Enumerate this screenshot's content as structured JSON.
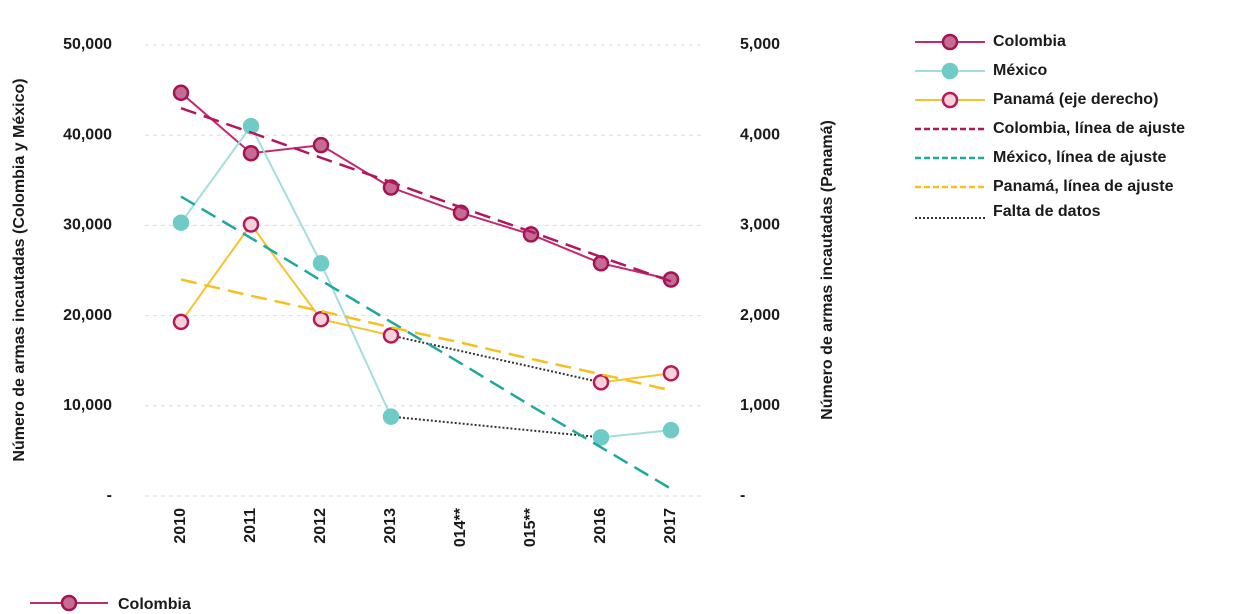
{
  "chart_data": {
    "type": "line",
    "categories": [
      "2010",
      "2011",
      "2012",
      "2013",
      "014**",
      "015**",
      "2016",
      "2017"
    ],
    "ylabel": "Número de armas incautadas (Colombia y México)",
    "y2label": "Número de armas incautadas (Panamá)",
    "ylim": [
      0,
      50000
    ],
    "yticks": [
      {
        "value": 0,
        "label": "-"
      },
      {
        "value": 10000,
        "label": "10,000"
      },
      {
        "value": 20000,
        "label": "20,000"
      },
      {
        "value": 30000,
        "label": "30,000"
      },
      {
        "value": 40000,
        "label": "40,000"
      },
      {
        "value": 50000,
        "label": "50,000"
      }
    ],
    "y2lim": [
      0,
      5000
    ],
    "y2ticks": [
      {
        "value": 0,
        "label": "-"
      },
      {
        "value": 1000,
        "label": "1,000"
      },
      {
        "value": 2000,
        "label": "2,000"
      },
      {
        "value": 3000,
        "label": "3,000"
      },
      {
        "value": 4000,
        "label": "4,000"
      },
      {
        "value": 5000,
        "label": "5,000"
      }
    ],
    "grid": true,
    "legend": "top-right",
    "gap_label": "Falta de datos",
    "gap_color": "#333333",
    "series": [
      {
        "name": "Colombia",
        "color": "#c4286e",
        "marker_fill": "#c56b94",
        "marker_edge": "#a3134f",
        "dash": "solid",
        "values": [
          44700,
          38000,
          38900,
          34200,
          31400,
          29000,
          25800,
          24000
        ]
      },
      {
        "name": "México",
        "color": "#a2dedb",
        "marker_fill": "#6fcbc5",
        "marker_edge": "#6fcbc5",
        "dash": "solid",
        "bridge_gaps": true,
        "values": [
          30300,
          41000,
          25800,
          8800,
          null,
          null,
          6500,
          7300
        ]
      },
      {
        "name": "Panamá (eje derecho)",
        "color": "#f5c32c",
        "marker_fill": "#f7d1d8",
        "marker_edge": "#b8175c",
        "dash": "solid",
        "axis": "y2",
        "bridge_gaps": true,
        "values": [
          1930,
          3010,
          1960,
          1780,
          null,
          null,
          1260,
          1360
        ]
      },
      {
        "name": "Colombia, línea de ajuste",
        "color": "#b0185e",
        "dash": "dashed",
        "values": [
          43000,
          40300,
          37500,
          34800,
          32000,
          29300,
          26500,
          23800
        ]
      },
      {
        "name": "México, línea de ajuste",
        "color": "#1fa89d",
        "dash": "dashed",
        "values": [
          33200,
          28600,
          23900,
          19300,
          14700,
          10000,
          5400,
          800
        ]
      },
      {
        "name": "Panamá, línea de ajuste",
        "color": "#f5c020",
        "dash": "dashed",
        "axis": "y2",
        "values": [
          2400,
          2220,
          2050,
          1870,
          1700,
          1520,
          1350,
          1170
        ]
      }
    ]
  }
}
